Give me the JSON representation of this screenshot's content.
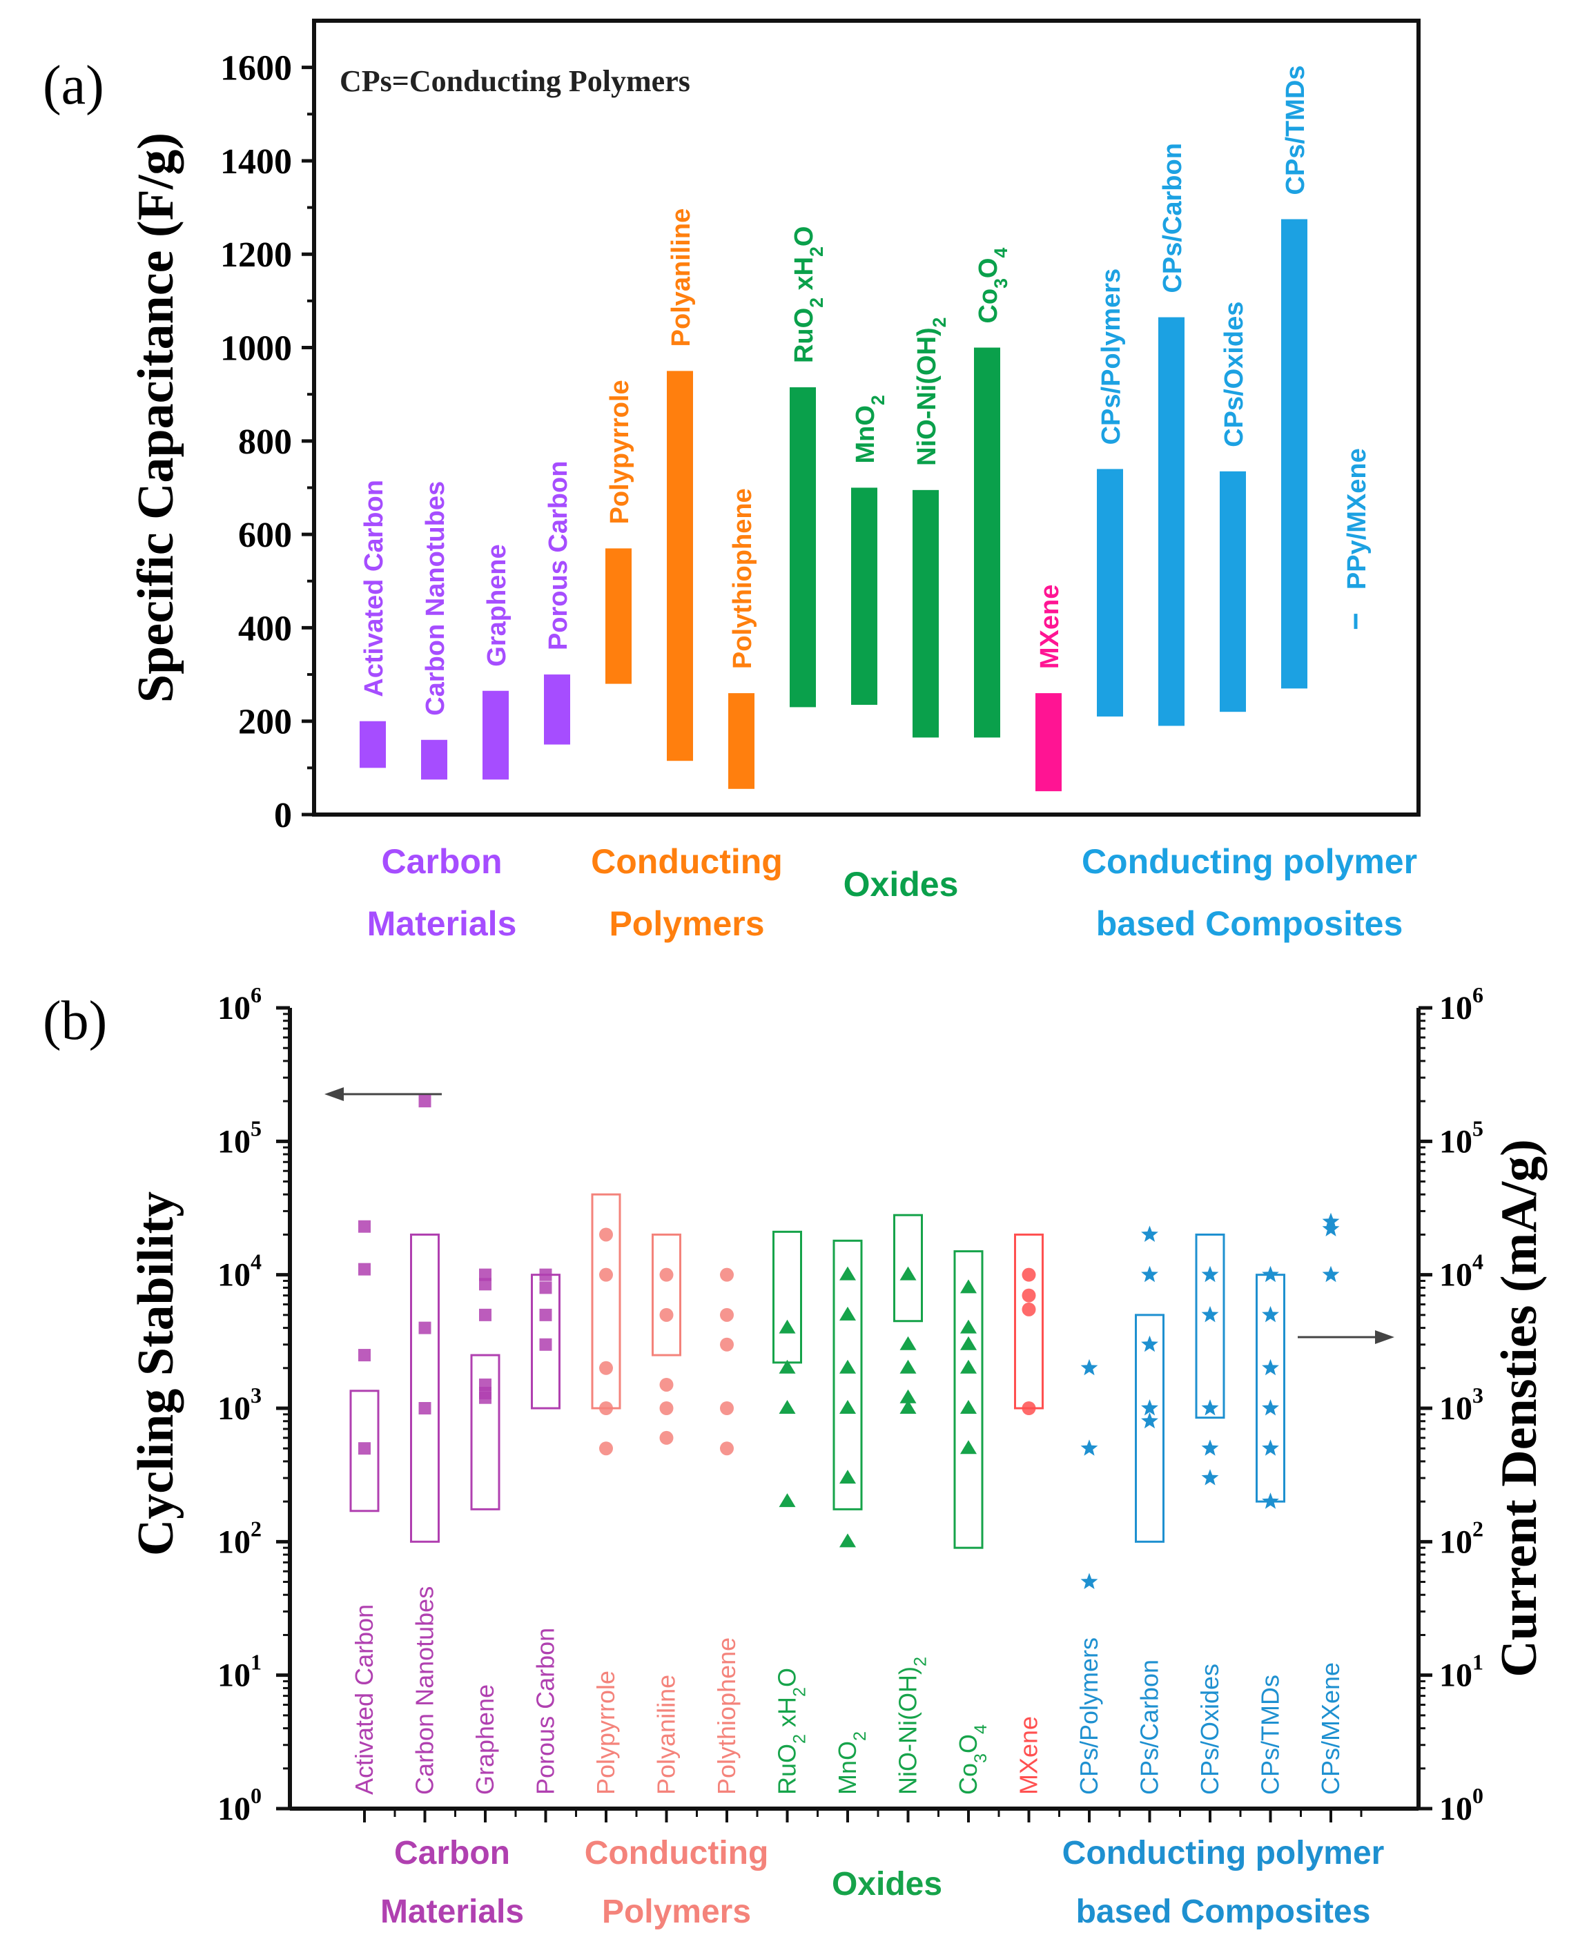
{
  "figure": {
    "panel_a_label": "(a)",
    "panel_b_label": "(b)",
    "note": "CPs=Conducting Polymers"
  },
  "colors": {
    "carbon_a": "#a64dff",
    "polymer_a": "#ff7f0e",
    "oxide_a": "#0aa04b",
    "mxene_a": "#ff1493",
    "composite_a": "#1ca1e2",
    "carbon_b": "#b040b0",
    "polymer_b": "#f4837b",
    "oxide_b": "#16a34a",
    "mxene_b": "#ff5050",
    "composite_b": "#1e90d0"
  },
  "chart_data": [
    {
      "type": "bar",
      "subtype": "floating-range",
      "ylabel": "Specific Capacitance (F/g)",
      "ylim": [
        0,
        1700
      ],
      "yticks": [
        "0",
        "200",
        "400",
        "600",
        "800",
        "1000",
        "1200",
        "1400",
        "1600"
      ],
      "categories": [
        {
          "label": "Activated Carbon",
          "range": [
            100,
            200
          ],
          "group": "carbon"
        },
        {
          "label": "Carbon Nanotubes",
          "range": [
            75,
            160
          ],
          "group": "carbon"
        },
        {
          "label": "Graphene",
          "range": [
            75,
            265
          ],
          "group": "carbon"
        },
        {
          "label": "Porous Carbon",
          "range": [
            150,
            300
          ],
          "group": "carbon"
        },
        {
          "label": "Polypyrrole",
          "range": [
            280,
            570
          ],
          "group": "polymer"
        },
        {
          "label": "Polyaniline",
          "range": [
            115,
            950
          ],
          "group": "polymer"
        },
        {
          "label": "Polythiophene",
          "range": [
            55,
            260
          ],
          "group": "polymer"
        },
        {
          "label": "RuO2 xH2O",
          "range": [
            230,
            915
          ],
          "group": "oxide"
        },
        {
          "label": "MnO2",
          "range": [
            235,
            700
          ],
          "group": "oxide"
        },
        {
          "label": "NiO-Ni(OH)2",
          "range": [
            165,
            695
          ],
          "group": "oxide"
        },
        {
          "label": "Co3O4",
          "range": [
            165,
            1000
          ],
          "group": "oxide"
        },
        {
          "label": "MXene",
          "range": [
            50,
            260
          ],
          "group": "mxene"
        },
        {
          "label": "CPs/Polymers",
          "range": [
            210,
            740
          ],
          "group": "composite"
        },
        {
          "label": "CPs/Carbon",
          "range": [
            190,
            1065
          ],
          "group": "composite"
        },
        {
          "label": "CPs/Oxides",
          "range": [
            220,
            735
          ],
          "group": "composite"
        },
        {
          "label": "CPs/TMDs",
          "range": [
            270,
            1275
          ],
          "group": "composite"
        },
        {
          "label": "PPy/MXene",
          "range": [
            420,
            430
          ],
          "group": "composite"
        }
      ],
      "groups": [
        {
          "key": "carbon",
          "line1": "Carbon",
          "line2": "Materials"
        },
        {
          "key": "polymer",
          "line1": "Conducting",
          "line2": "Polymers"
        },
        {
          "key": "oxide",
          "line1": "Oxides",
          "line2": ""
        },
        {
          "key": "composite",
          "line1": "Conducting polymer",
          "line2": "based Composites"
        }
      ]
    },
    {
      "type": "scatter",
      "subtype": "box-and-points, dual log axis",
      "ylabel_left": "Cycling Stability",
      "ylabel_right": "Current Densties (mA/g)",
      "yscale": "log",
      "ylim": [
        1,
        1000000
      ],
      "categories": [
        {
          "label": "Activated Carbon",
          "group": "carbon",
          "box": [
            170,
            1350
          ],
          "points": [
            23000,
            11000,
            2500,
            500
          ]
        },
        {
          "label": "Carbon Nanotubes",
          "group": "carbon",
          "box": [
            100,
            20000
          ],
          "points": [
            200000,
            4000,
            1000
          ]
        },
        {
          "label": "Graphene",
          "group": "carbon",
          "box": [
            175,
            2500
          ],
          "points": [
            10000,
            8500,
            5000,
            1500,
            1300,
            1200
          ]
        },
        {
          "label": "Porous Carbon",
          "group": "carbon",
          "box": [
            1000,
            10000
          ],
          "points": [
            10000,
            8000,
            5000,
            3000
          ]
        },
        {
          "label": "Polypyrrole",
          "group": "polymer",
          "box": [
            1000,
            40000
          ],
          "points": [
            20000,
            10000,
            2000,
            1000,
            500
          ]
        },
        {
          "label": "Polyaniline",
          "group": "polymer",
          "box": [
            2500,
            20000
          ],
          "points": [
            10000,
            5000,
            1500,
            1000,
            600
          ]
        },
        {
          "label": "Polythiophene",
          "group": "polymer",
          "box": null,
          "points": [
            10000,
            5000,
            3000,
            1000,
            500
          ]
        },
        {
          "label": "RuO2 xH2O",
          "group": "oxide",
          "box": [
            2200,
            21000
          ],
          "points": [
            4000,
            2000,
            1000,
            200
          ]
        },
        {
          "label": "MnO2",
          "group": "oxide",
          "box": [
            175,
            18000
          ],
          "points": [
            10000,
            5000,
            2000,
            1000,
            300,
            100
          ]
        },
        {
          "label": "NiO-Ni(OH)2",
          "group": "oxide",
          "box": [
            4500,
            28000
          ],
          "points": [
            10000,
            3000,
            2000,
            1200,
            1000
          ]
        },
        {
          "label": "Co3O4",
          "group": "oxide",
          "box": [
            90,
            15000
          ],
          "points": [
            8000,
            4000,
            3000,
            2000,
            1000,
            500
          ]
        },
        {
          "label": "MXene",
          "group": "mxene",
          "box": [
            1000,
            20000
          ],
          "points": [
            10000,
            7000,
            5500,
            1000
          ]
        },
        {
          "label": "CPs/Polymers",
          "group": "composite",
          "box": null,
          "points": [
            2000,
            500,
            50
          ]
        },
        {
          "label": "CPs/Carbon",
          "group": "composite",
          "box": [
            100,
            5000
          ],
          "points": [
            20000,
            10000,
            3000,
            1000,
            800
          ]
        },
        {
          "label": "CPs/Oxides",
          "group": "composite",
          "box": [
            850,
            20000
          ],
          "points": [
            10000,
            5000,
            1000,
            500,
            300
          ]
        },
        {
          "label": "CPs/TMDs",
          "group": "composite",
          "box": [
            200,
            10000
          ],
          "points": [
            10000,
            5000,
            2000,
            1000,
            500,
            200
          ]
        },
        {
          "label": "CPs/MXene",
          "group": "composite",
          "box": null,
          "points": [
            25000,
            22000,
            10000
          ]
        }
      ],
      "groups": [
        {
          "key": "carbon",
          "line1": "Carbon",
          "line2": "Materials"
        },
        {
          "key": "polymer",
          "line1": "Conducting",
          "line2": "Polymers"
        },
        {
          "key": "oxide",
          "line1": "Oxides",
          "line2": ""
        },
        {
          "key": "composite",
          "line1": "Conducting polymer",
          "line2": "based Composites"
        }
      ]
    }
  ]
}
